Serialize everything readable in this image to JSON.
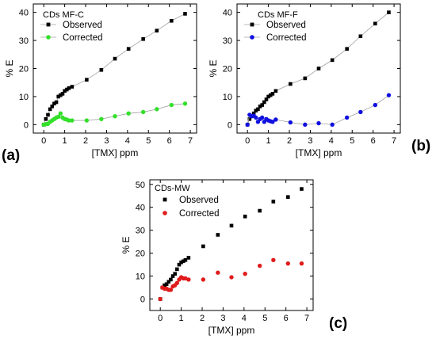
{
  "chart_data": [
    {
      "type": "line",
      "panel_label": "(a)",
      "title": "CDs MF-C",
      "xlabel": "[TMX] ppm",
      "ylabel": "% E",
      "xlim": [
        -0.5,
        7.3
      ],
      "ylim": [
        -3,
        43
      ],
      "xticks": [
        0,
        1,
        2,
        3,
        4,
        5,
        6,
        7
      ],
      "yticks": [
        0,
        10,
        20,
        30,
        40
      ],
      "lines": true,
      "legend_position": "top-left",
      "series": [
        {
          "name": "Observed",
          "color": "#000000",
          "marker": "square",
          "x": [
            0,
            0.1,
            0.2,
            0.3,
            0.4,
            0.5,
            0.6,
            0.7,
            0.8,
            0.9,
            1.0,
            1.1,
            1.2,
            1.35,
            2.05,
            2.75,
            3.4,
            4.05,
            4.75,
            5.4,
            6.1,
            6.75
          ],
          "y": [
            0,
            2,
            3.5,
            5.5,
            6.5,
            7.5,
            8,
            10,
            10.5,
            11,
            12,
            12.5,
            13,
            13.5,
            16,
            19.5,
            23.5,
            27,
            30.5,
            33.5,
            37,
            39.5
          ]
        },
        {
          "name": "Corrected",
          "color": "#33e02a",
          "marker": "circle",
          "x": [
            0,
            0.1,
            0.2,
            0.3,
            0.4,
            0.5,
            0.6,
            0.7,
            0.8,
            0.9,
            1.0,
            1.1,
            1.2,
            1.35,
            2.05,
            2.75,
            3.4,
            4.05,
            4.75,
            5.4,
            6.1,
            6.75
          ],
          "y": [
            0,
            0.2,
            0.3,
            1.0,
            1.5,
            2.0,
            2.5,
            2.8,
            4.0,
            2.5,
            2.0,
            1.8,
            1.5,
            1.5,
            1.5,
            2.0,
            3.0,
            4.0,
            4.5,
            5.5,
            7.0,
            7.5
          ]
        }
      ]
    },
    {
      "type": "line",
      "panel_label": "(b)",
      "title": "CDs MF-F",
      "xlabel": "[TMX] ppm",
      "ylabel": "% E",
      "xlim": [
        -0.5,
        7.3
      ],
      "ylim": [
        -3,
        43
      ],
      "xticks": [
        0,
        1,
        2,
        3,
        4,
        5,
        6,
        7
      ],
      "yticks": [
        0,
        10,
        20,
        30,
        40
      ],
      "lines": true,
      "legend_position": "top-left",
      "series": [
        {
          "name": "Observed",
          "color": "#000000",
          "marker": "square",
          "x": [
            0,
            0.1,
            0.2,
            0.3,
            0.4,
            0.5,
            0.6,
            0.7,
            0.8,
            0.9,
            1.0,
            1.1,
            1.2,
            1.35,
            2.05,
            2.75,
            3.4,
            4.05,
            4.75,
            5.4,
            6.1,
            6.75
          ],
          "y": [
            0,
            2,
            3,
            4,
            5,
            5.5,
            6.5,
            7,
            8,
            9,
            10,
            10.5,
            11,
            12,
            14.5,
            16.5,
            20,
            23,
            27,
            31.5,
            36,
            40
          ]
        },
        {
          "name": "Corrected",
          "color": "#1010e0",
          "marker": "circle",
          "x": [
            0,
            0.1,
            0.2,
            0.3,
            0.4,
            0.5,
            0.6,
            0.7,
            0.8,
            0.9,
            1.0,
            1.1,
            1.2,
            1.35,
            2.05,
            2.75,
            3.4,
            4.05,
            4.75,
            5.4,
            6.1,
            6.75
          ],
          "y": [
            0,
            3.5,
            3.0,
            3.2,
            2.5,
            1.0,
            2.0,
            2.5,
            1.0,
            2.0,
            1.5,
            1.2,
            1.0,
            1.8,
            0.8,
            0,
            0.5,
            0,
            2.5,
            4.5,
            7.0,
            10.5
          ]
        }
      ]
    },
    {
      "type": "scatter",
      "panel_label": "(c)",
      "title": "CDs-MW",
      "xlabel": "[TMX] ppm",
      "ylabel": "% E",
      "xlim": [
        -0.5,
        7.3
      ],
      "ylim": [
        -5,
        52
      ],
      "xticks": [
        0,
        1,
        2,
        3,
        4,
        5,
        6,
        7
      ],
      "yticks": [
        0,
        10,
        20,
        30,
        40,
        50
      ],
      "lines": false,
      "legend_position": "top-left",
      "series": [
        {
          "name": "Observed",
          "color": "#000000",
          "marker": "square",
          "x": [
            0,
            0.1,
            0.2,
            0.3,
            0.4,
            0.5,
            0.6,
            0.7,
            0.8,
            0.9,
            1.0,
            1.1,
            1.2,
            1.35,
            2.05,
            2.75,
            3.4,
            4.05,
            4.75,
            5.4,
            6.1,
            6.75
          ],
          "y": [
            0,
            5,
            6,
            6.5,
            7.5,
            8.5,
            10,
            11,
            13,
            15,
            16,
            16.5,
            17,
            18,
            23,
            28,
            32,
            36,
            38.5,
            42.5,
            44.5,
            48
          ]
        },
        {
          "name": "Corrected",
          "color": "#e01b1b",
          "marker": "circle",
          "x": [
            0,
            0.1,
            0.2,
            0.3,
            0.4,
            0.5,
            0.6,
            0.7,
            0.8,
            0.9,
            1.0,
            1.1,
            1.2,
            1.35,
            2.05,
            2.75,
            3.4,
            4.05,
            4.75,
            5.4,
            6.1,
            6.75
          ],
          "y": [
            0,
            5,
            4.5,
            4.5,
            4,
            4,
            5.5,
            6,
            7,
            8.5,
            9.5,
            9,
            9,
            8.5,
            8.5,
            11.5,
            9.5,
            11,
            14.5,
            17,
            15.5,
            15.5
          ]
        }
      ]
    }
  ]
}
